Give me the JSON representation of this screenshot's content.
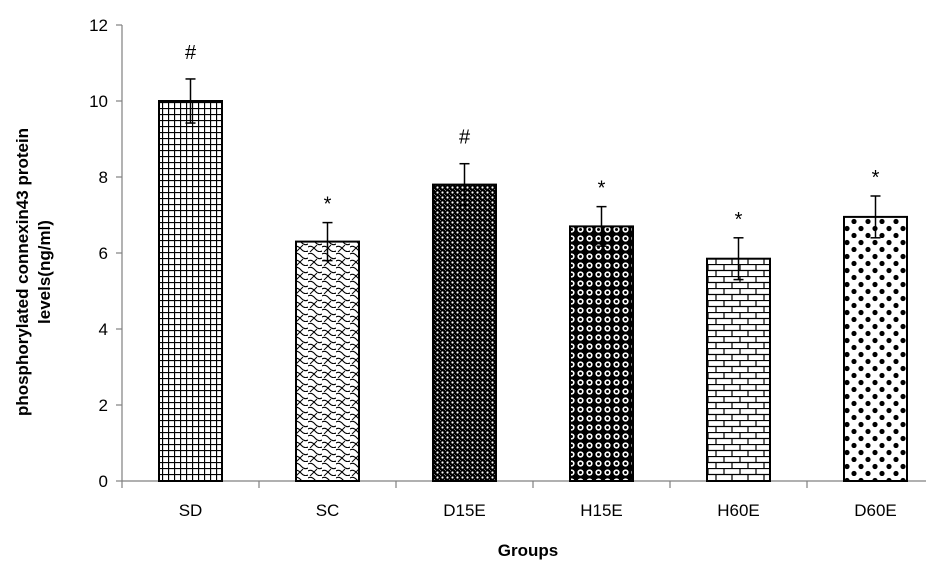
{
  "chart_data": {
    "type": "bar",
    "title": "",
    "xlabel": "Groups",
    "ylabel_lines": [
      "phosphorylated connexin43 protein",
      "levels(ng/ml)"
    ],
    "categories": [
      "SD",
      "SC",
      "D15E",
      "H15E",
      "H60E",
      "D60E"
    ],
    "values": [
      10.0,
      6.3,
      7.8,
      6.7,
      5.85,
      6.95
    ],
    "errors": [
      0.58,
      0.5,
      0.55,
      0.52,
      0.55,
      0.55
    ],
    "annotations": [
      "#",
      "*",
      "#",
      "*",
      "*",
      "*"
    ],
    "patterns": [
      "grid",
      "waves",
      "dense-checker",
      "circles",
      "bricks",
      "diamonds"
    ],
    "ylim": [
      0,
      12
    ],
    "yticks": [
      0,
      2,
      4,
      6,
      8,
      10,
      12
    ],
    "grid": false,
    "legend": "none"
  }
}
